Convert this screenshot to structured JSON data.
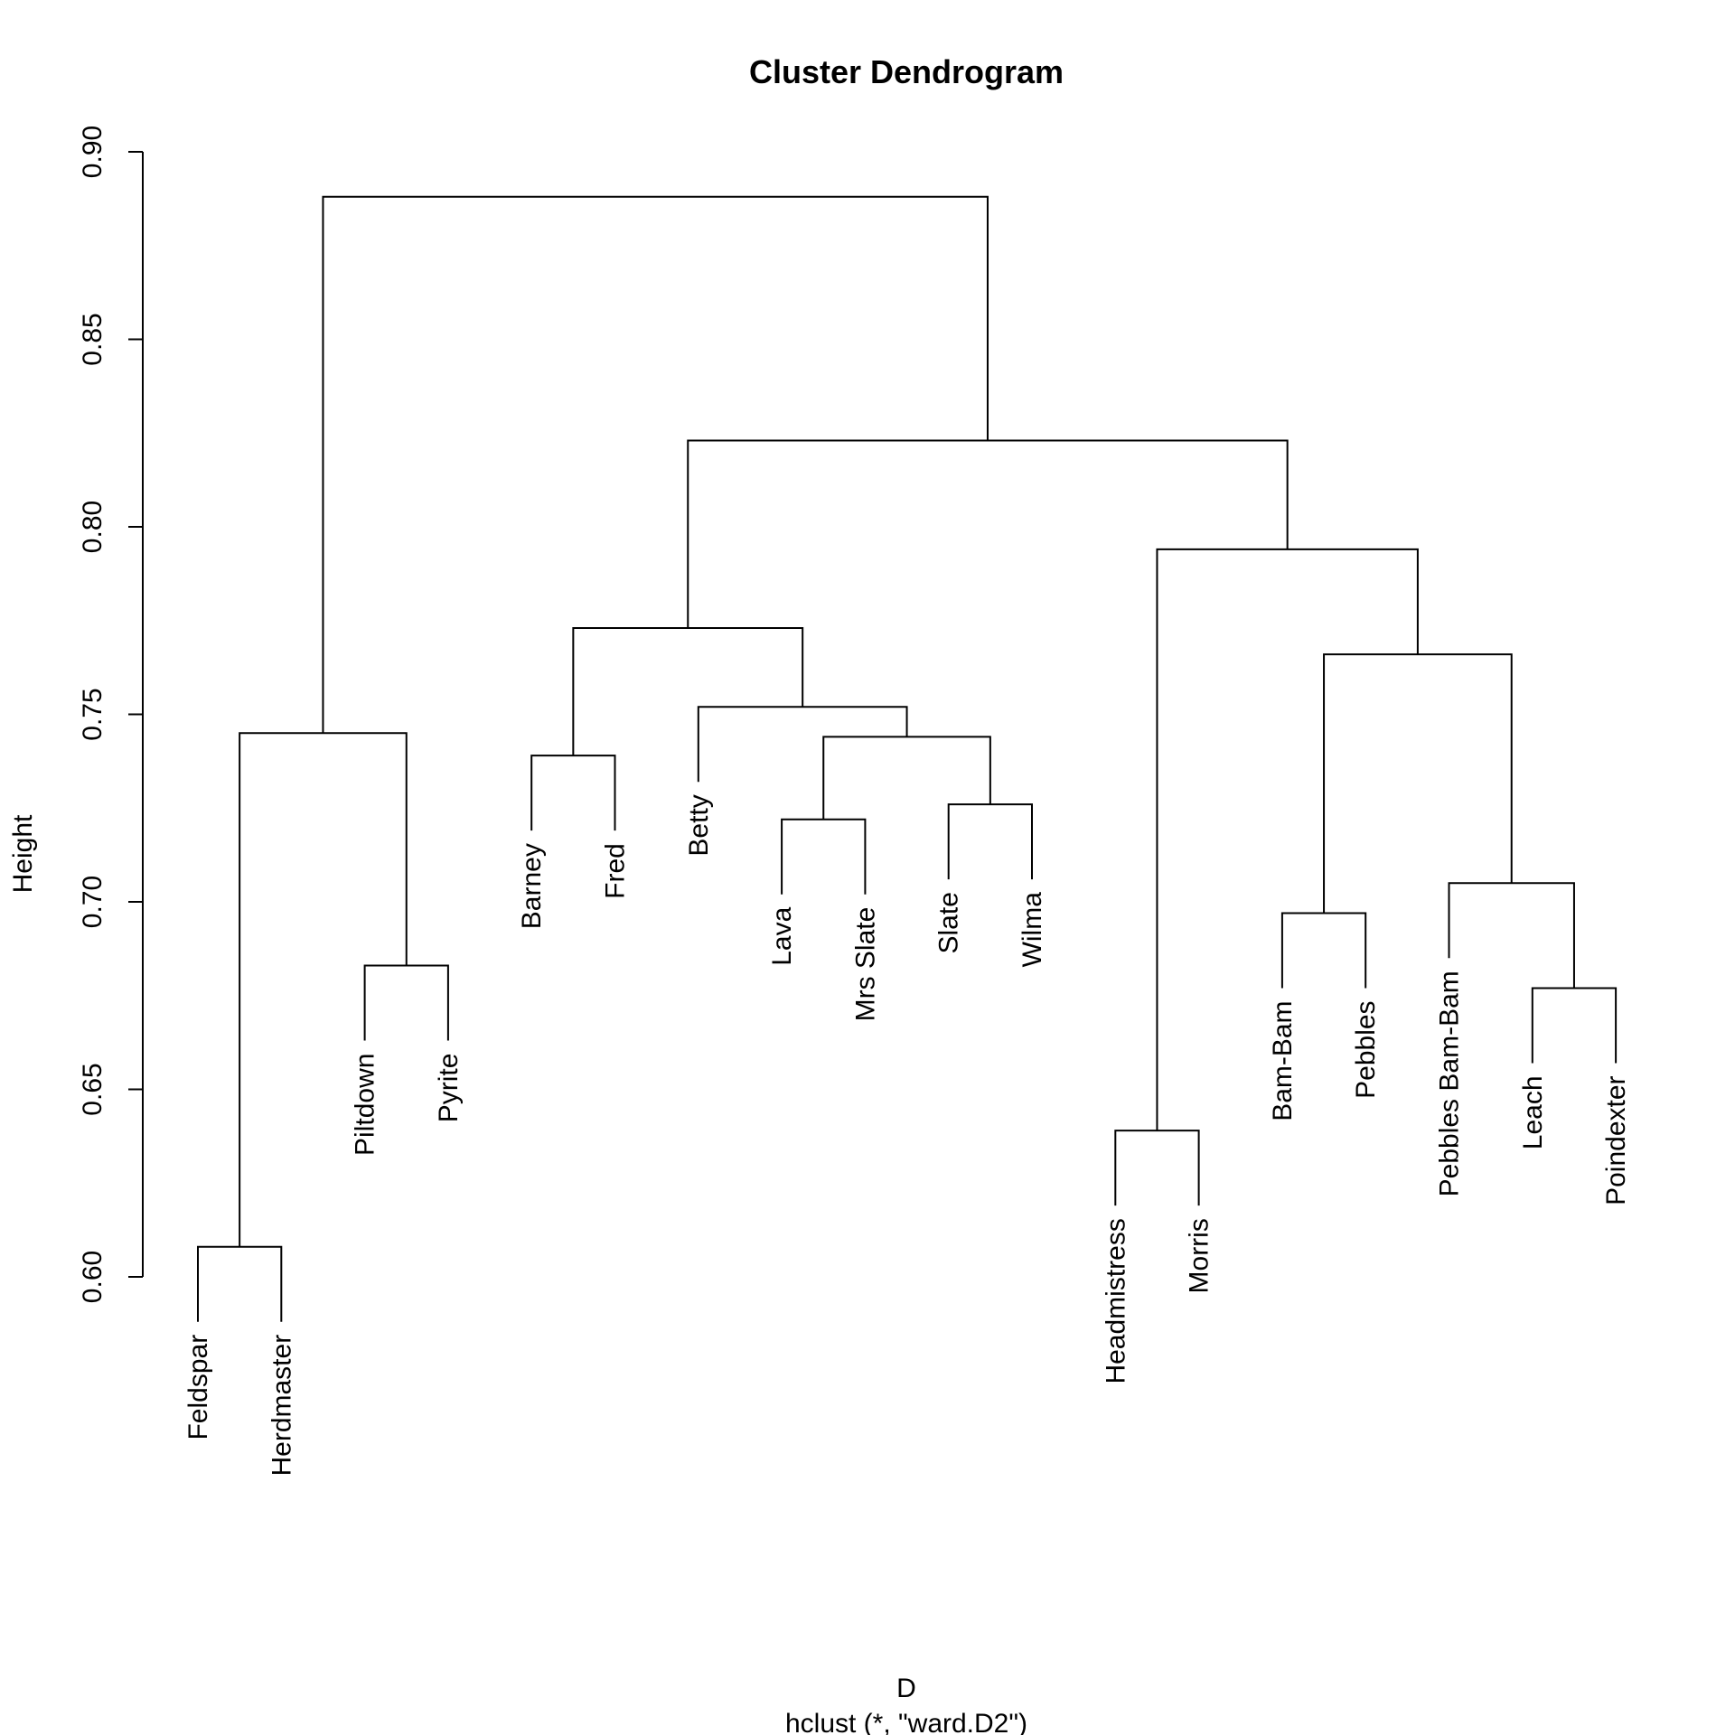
{
  "chart_data": {
    "type": "dendrogram",
    "title": "Cluster Dendrogram",
    "xlabel": "D",
    "sublabel": "hclust (*, \"ward.D2\")",
    "ylabel": "Height",
    "ylim": [
      0.6,
      0.9
    ],
    "yticks": [
      0.6,
      0.65,
      0.7,
      0.75,
      0.8,
      0.85,
      0.9
    ],
    "ytick_labels": [
      "0.60",
      "0.65",
      "0.70",
      "0.75",
      "0.80",
      "0.85",
      "0.90"
    ],
    "leaves": [
      {
        "label": "Feldspar",
        "merge_height": 0.608
      },
      {
        "label": "Herdmaster",
        "merge_height": 0.608
      },
      {
        "label": "Piltdown",
        "merge_height": 0.683
      },
      {
        "label": "Pyrite",
        "merge_height": 0.683
      },
      {
        "label": "Barney",
        "merge_height": 0.739
      },
      {
        "label": "Fred",
        "merge_height": 0.739
      },
      {
        "label": "Betty",
        "merge_height": 0.752
      },
      {
        "label": "Lava",
        "merge_height": 0.722
      },
      {
        "label": "Mrs Slate",
        "merge_height": 0.722
      },
      {
        "label": "Slate",
        "merge_height": 0.726
      },
      {
        "label": "Wilma",
        "merge_height": 0.726
      },
      {
        "label": "Headmistress",
        "merge_height": 0.639
      },
      {
        "label": "Morris",
        "merge_height": 0.639
      },
      {
        "label": "Bam-Bam",
        "merge_height": 0.697
      },
      {
        "label": "Pebbles",
        "merge_height": 0.697
      },
      {
        "label": "Pebbles Bam-Bam",
        "merge_height": 0.705
      },
      {
        "label": "Leach",
        "merge_height": 0.677
      },
      {
        "label": "Poindexter",
        "merge_height": 0.677
      }
    ],
    "merges": [
      {
        "left": "L0",
        "right": "L1",
        "height": 0.608
      },
      {
        "left": "L2",
        "right": "L3",
        "height": 0.683
      },
      {
        "left": "M0",
        "right": "M1",
        "height": 0.745
      },
      {
        "left": "L4",
        "right": "L5",
        "height": 0.739
      },
      {
        "left": "L7",
        "right": "L8",
        "height": 0.722
      },
      {
        "left": "L9",
        "right": "L10",
        "height": 0.726
      },
      {
        "left": "M4",
        "right": "M5",
        "height": 0.744
      },
      {
        "left": "L6",
        "right": "M6",
        "height": 0.752
      },
      {
        "left": "M3",
        "right": "M7",
        "height": 0.773
      },
      {
        "left": "L11",
        "right": "L12",
        "height": 0.639
      },
      {
        "left": "L13",
        "right": "L14",
        "height": 0.697
      },
      {
        "left": "L16",
        "right": "L17",
        "height": 0.677
      },
      {
        "left": "L15",
        "right": "M11",
        "height": 0.705
      },
      {
        "left": "M10",
        "right": "M12",
        "height": 0.766
      },
      {
        "left": "M9",
        "right": "M13",
        "height": 0.794
      },
      {
        "left": "M8",
        "right": "M14",
        "height": 0.823
      },
      {
        "left": "M2",
        "right": "M15",
        "height": 0.888
      }
    ],
    "hang": 0.02,
    "grid": false,
    "legend": "none"
  }
}
